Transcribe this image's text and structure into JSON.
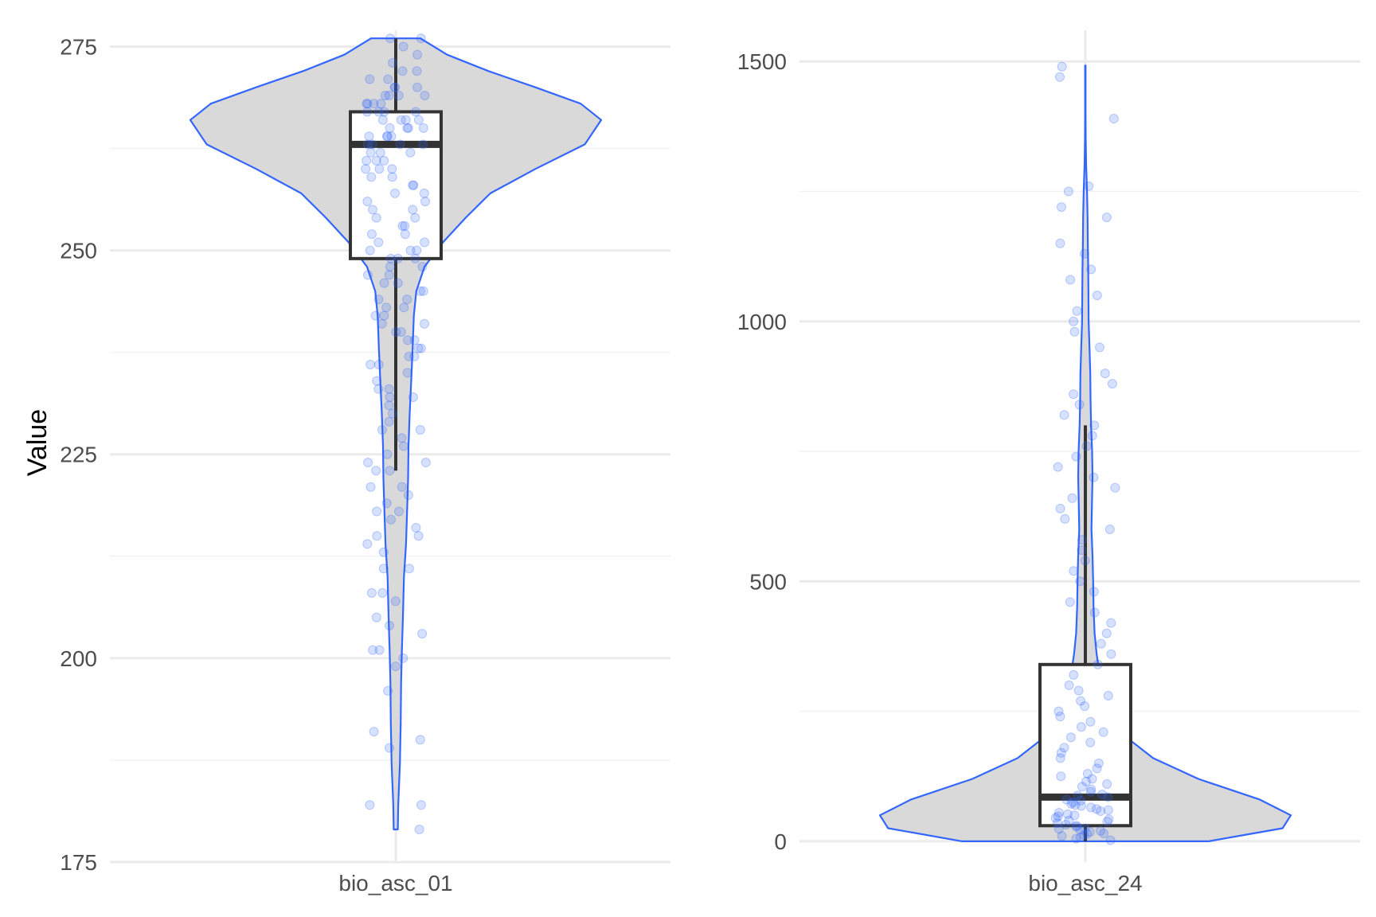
{
  "y_axis_title": "Value",
  "colors": {
    "accent": "#3366ff",
    "violin_fill": "#d9d9d9",
    "box_stroke": "#333333",
    "grid_major": "#ebebeb",
    "grid_minor": "#f2f2f2"
  },
  "chart_data": [
    {
      "type": "violin",
      "category": "bio_asc_01",
      "ylim": [
        175,
        277
      ],
      "yticks": [
        175,
        200,
        225,
        250,
        275
      ],
      "yminor": [
        187.5,
        212.5,
        237.5,
        262.5
      ],
      "box": {
        "min": 223,
        "q1": 249,
        "median": 263,
        "q3": 267,
        "max": 276
      },
      "density": [
        [
          179,
          0.01
        ],
        [
          182,
          0.012
        ],
        [
          187,
          0.02
        ],
        [
          192,
          0.024
        ],
        [
          197,
          0.026
        ],
        [
          201,
          0.03
        ],
        [
          205,
          0.035
        ],
        [
          210,
          0.04
        ],
        [
          214,
          0.05
        ],
        [
          218,
          0.055
        ],
        [
          222,
          0.06
        ],
        [
          226,
          0.062
        ],
        [
          230,
          0.068
        ],
        [
          234,
          0.075
        ],
        [
          238,
          0.082
        ],
        [
          242,
          0.088
        ],
        [
          245,
          0.1
        ],
        [
          248,
          0.14
        ],
        [
          251,
          0.23
        ],
        [
          254,
          0.34
        ],
        [
          257,
          0.46
        ],
        [
          260,
          0.68
        ],
        [
          263,
          0.92
        ],
        [
          266,
          1.0
        ],
        [
          268,
          0.9
        ],
        [
          270,
          0.68
        ],
        [
          272,
          0.45
        ],
        [
          274,
          0.25
        ],
        [
          276,
          0.12
        ]
      ],
      "points": [
        179,
        182,
        182,
        189,
        190,
        191,
        196,
        199,
        200,
        201,
        201,
        203,
        204,
        205,
        207,
        208,
        208,
        211,
        211,
        213,
        214,
        215,
        215,
        216,
        217,
        218,
        218,
        219,
        220,
        221,
        221,
        223,
        223,
        224,
        224,
        225,
        226,
        227,
        228,
        228,
        229,
        230,
        231,
        232,
        232,
        233,
        233,
        234,
        235,
        236,
        236,
        237,
        237,
        238,
        238,
        239,
        239,
        240,
        240,
        241,
        241,
        242,
        242,
        243,
        243,
        244,
        244,
        245,
        245,
        246,
        246,
        247,
        247,
        248,
        248,
        249,
        249,
        249,
        250,
        250,
        250,
        251,
        251,
        252,
        252,
        253,
        253,
        254,
        254,
        255,
        255,
        256,
        256,
        257,
        257,
        258,
        258,
        259,
        259,
        260,
        260,
        260,
        261,
        261,
        261,
        262,
        262,
        262,
        263,
        263,
        263,
        263,
        264,
        264,
        264,
        264,
        265,
        265,
        265,
        265,
        266,
        266,
        266,
        266,
        267,
        267,
        267,
        267,
        268,
        268,
        268,
        268,
        269,
        269,
        269,
        269,
        270,
        270,
        270,
        271,
        271,
        272,
        272,
        273,
        274,
        275,
        276,
        276
      ]
    },
    {
      "type": "violin",
      "category": "bio_asc_24",
      "ylim": [
        -40,
        1560
      ],
      "yticks": [
        0,
        500,
        1000,
        1500
      ],
      "yminor": [
        250,
        750,
        1250
      ],
      "box": {
        "min": 0,
        "q1": 30,
        "median": 85,
        "q3": 340,
        "max": 800
      },
      "density": [
        [
          0,
          0.6
        ],
        [
          25,
          0.96
        ],
        [
          50,
          1.0
        ],
        [
          80,
          0.85
        ],
        [
          120,
          0.55
        ],
        [
          160,
          0.33
        ],
        [
          200,
          0.2
        ],
        [
          240,
          0.14
        ],
        [
          280,
          0.095
        ],
        [
          320,
          0.07
        ],
        [
          360,
          0.055
        ],
        [
          400,
          0.045
        ],
        [
          450,
          0.04
        ],
        [
          500,
          0.038
        ],
        [
          550,
          0.035
        ],
        [
          600,
          0.03
        ],
        [
          650,
          0.032
        ],
        [
          700,
          0.035
        ],
        [
          750,
          0.033
        ],
        [
          800,
          0.028
        ],
        [
          850,
          0.025
        ],
        [
          900,
          0.024
        ],
        [
          950,
          0.02
        ],
        [
          1000,
          0.016
        ],
        [
          1050,
          0.015
        ],
        [
          1100,
          0.014
        ],
        [
          1150,
          0.012
        ],
        [
          1200,
          0.011
        ],
        [
          1250,
          0.008
        ],
        [
          1300,
          0.004
        ],
        [
          1350,
          0.002
        ],
        [
          1400,
          0.001
        ],
        [
          1492,
          0.001
        ]
      ],
      "points": [
        2,
        5,
        8,
        10,
        12,
        14,
        15,
        18,
        20,
        22,
        24,
        25,
        28,
        30,
        32,
        35,
        38,
        40,
        42,
        45,
        48,
        50,
        52,
        55,
        58,
        60,
        62,
        65,
        68,
        70,
        72,
        75,
        78,
        80,
        85,
        88,
        90,
        95,
        100,
        105,
        110,
        115,
        120,
        125,
        130,
        140,
        150,
        160,
        170,
        180,
        190,
        200,
        210,
        220,
        230,
        240,
        250,
        260,
        270,
        280,
        290,
        300,
        320,
        340,
        360,
        380,
        400,
        420,
        440,
        460,
        480,
        500,
        520,
        540,
        560,
        580,
        600,
        620,
        640,
        660,
        680,
        700,
        720,
        740,
        760,
        780,
        800,
        820,
        840,
        860,
        880,
        900,
        950,
        980,
        1000,
        1020,
        1050,
        1080,
        1100,
        1130,
        1150,
        1200,
        1220,
        1250,
        1260,
        1390,
        1470,
        1490
      ]
    }
  ]
}
